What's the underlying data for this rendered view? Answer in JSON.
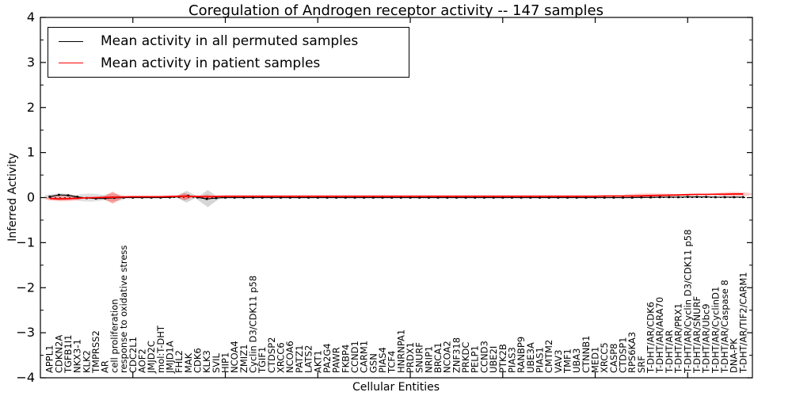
{
  "figure": {
    "title": "Coregulation of Androgen receptor activity -- 147 samples"
  },
  "legend": {
    "entries": [
      {
        "label": "Mean activity in all permuted samples",
        "color": "#000000"
      },
      {
        "label": "Mean activity in patient samples",
        "color": "#ff0000"
      }
    ]
  },
  "chart_data": {
    "type": "line",
    "title": "Coregulation of Androgen receptor activity -- 147 samples",
    "xlabel": "Cellular Entities",
    "ylabel": "Inferred Activity",
    "xlim": [
      0,
      77
    ],
    "ylim": [
      -4,
      4
    ],
    "ytick_values": [
      4,
      3,
      2,
      1,
      0,
      -1,
      -2,
      -3,
      -4
    ],
    "ytick_labels": [
      "4",
      "3",
      "2",
      "1",
      "0",
      "−1",
      "−2",
      "−3",
      "−4"
    ],
    "y_minor_step": 0.5,
    "xtick_step": 10,
    "grid": false,
    "legend_position": "upper left",
    "zero_line": {
      "value": 0,
      "style": "dotted",
      "color": "#000000"
    },
    "categories": [
      "APPL1",
      "CDKN2A",
      "TGFB1I1",
      "NKX3-1",
      "KLK2",
      "TMPRSS2",
      "AR",
      "cell proliferation",
      "response to oxidative stress",
      "CDC2L1",
      "AOF2",
      "JMJD2C",
      "mol:T-DHT",
      "JMJD1A",
      "FHL2",
      "MAK",
      "CDK6",
      "KLK3",
      "SVIL",
      "HIP1",
      "NCOA4",
      "ZMIZ1",
      "Cyclin D3/CDK11 p58",
      "TGIF1",
      "CTDSP2",
      "XRCC6",
      "NCOA6",
      "PATZ1",
      "LATS2",
      "AKT1",
      "PA2G4",
      "PAWR",
      "FKBP4",
      "CCND1",
      "CARM1",
      "GSN",
      "PIAS4",
      "TCF4",
      "HNRNPA1",
      "PRDX1",
      "SNURF",
      "NRIP1",
      "BRCA1",
      "NCOA2",
      "ZNF318",
      "PRKDC",
      "PELP1",
      "CCND3",
      "UBE2I",
      "PTK2B",
      "PIAS3",
      "RANBP9",
      "UBE3A",
      "PIAS1",
      "CMTM2",
      "VAV3",
      "TMF1",
      "UBA3",
      "CTNNB1",
      "MED1",
      "XRCC5",
      "CASP8",
      "CTDSP1",
      "RPS6KA3",
      "SRF",
      "T-DHT/AR/CDK6",
      "T-DHT/AR/ARA70",
      "T-DHT/AR",
      "T-DHT/AR/PRX1",
      "T-DHT/AR/Cyclin D3/CDK11 p58",
      "T-DHT/AR/SNURF",
      "T-DHT/AR/Ubc9",
      "T-DHT/AR/CyclinD1",
      "T-DHT/AR/Caspase 8",
      "DNA-PK",
      "T-DHT/AR/TIF2/CARM1"
    ],
    "series": [
      {
        "name": "Mean activity in all permuted samples",
        "color": "#000000",
        "marker": "square",
        "values": [
          0.02,
          0.06,
          0.05,
          0.015,
          -0.01,
          -0.02,
          -0.015,
          -0.005,
          0,
          0,
          0,
          0,
          0,
          0.005,
          0.02,
          0.04,
          0.005,
          -0.03,
          -0.01,
          0,
          0,
          0,
          0,
          0,
          0,
          0,
          0,
          0,
          0,
          0,
          0,
          0,
          0,
          0,
          0,
          0,
          0,
          0,
          0,
          0,
          0,
          0,
          0,
          0,
          0,
          0,
          0,
          0,
          0,
          0,
          0,
          0,
          0,
          0,
          0,
          0,
          0,
          0,
          0,
          0,
          0,
          0,
          0,
          0,
          0.005,
          0.005,
          0.01,
          0.01,
          0.01,
          0.015,
          0.015,
          0.015,
          0.01,
          0.01,
          0.01,
          0.01
        ]
      },
      {
        "name": "Mean activity in patient samples",
        "color": "#ff0000",
        "marker": "none",
        "values": [
          -0.02,
          -0.03,
          -0.025,
          -0.015,
          -0.005,
          0,
          0.005,
          0.01,
          0.015,
          0.02,
          0.02,
          0.02,
          0.02,
          0.025,
          0.03,
          0.03,
          0.025,
          0.02,
          0.025,
          0.03,
          0.03,
          0.03,
          0.03,
          0.03,
          0.03,
          0.03,
          0.03,
          0.03,
          0.03,
          0.03,
          0.03,
          0.03,
          0.03,
          0.03,
          0.03,
          0.03,
          0.03,
          0.03,
          0.03,
          0.03,
          0.03,
          0.03,
          0.03,
          0.03,
          0.03,
          0.03,
          0.03,
          0.03,
          0.03,
          0.03,
          0.03,
          0.03,
          0.03,
          0.03,
          0.03,
          0.03,
          0.03,
          0.03,
          0.03,
          0.03,
          0.035,
          0.035,
          0.035,
          0.035,
          0.04,
          0.045,
          0.05,
          0.055,
          0.06,
          0.065,
          0.07,
          0.07,
          0.075,
          0.075,
          0.08,
          0.08
        ]
      }
    ],
    "distribution_blobs": [
      {
        "shape": "ellipse",
        "cx": 2.2,
        "cy": 0.02,
        "rx": 1.8,
        "ry": 0.07,
        "color": "#999999",
        "opacity": 0.35
      },
      {
        "shape": "ellipse",
        "cx": 2.5,
        "cy": -0.02,
        "rx": 2.0,
        "ry": 0.06,
        "color": "#ff0000",
        "opacity": 0.25
      },
      {
        "shape": "ellipse",
        "cx": 5.3,
        "cy": 0.0,
        "rx": 1.8,
        "ry": 0.09,
        "color": "#999999",
        "opacity": 0.3
      },
      {
        "shape": "ellipse",
        "cx": 7.8,
        "cy": 0.0,
        "rx": 1.5,
        "ry": 0.08,
        "color": "#999999",
        "opacity": 0.25
      },
      {
        "shape": "diamond",
        "cx": 7.8,
        "cy": 0.0,
        "rx": 1.2,
        "ry": 0.13,
        "color": "#ff0000",
        "opacity": 0.35
      },
      {
        "shape": "diamond",
        "cx": 15.8,
        "cy": 0.02,
        "rx": 1.3,
        "ry": 0.13,
        "color": "#999999",
        "opacity": 0.4
      },
      {
        "shape": "diamond",
        "cx": 15.6,
        "cy": 0.02,
        "rx": 1.0,
        "ry": 0.08,
        "color": "#ff0000",
        "opacity": 0.35
      },
      {
        "shape": "diamond",
        "cx": 18.1,
        "cy": -0.02,
        "rx": 1.3,
        "ry": 0.19,
        "color": "#999999",
        "opacity": 0.4
      },
      {
        "shape": "diamond",
        "cx": 18.0,
        "cy": 0.01,
        "rx": 0.9,
        "ry": 0.06,
        "color": "#ff0000",
        "opacity": 0.3
      },
      {
        "shape": "ellipse",
        "cx": 66.0,
        "cy": 0.045,
        "rx": 3.0,
        "ry": 0.05,
        "color": "#ff0000",
        "opacity": 0.2
      },
      {
        "shape": "ellipse",
        "cx": 75.0,
        "cy": 0.075,
        "rx": 2.0,
        "ry": 0.05,
        "color": "#ff0000",
        "opacity": 0.2
      }
    ]
  }
}
